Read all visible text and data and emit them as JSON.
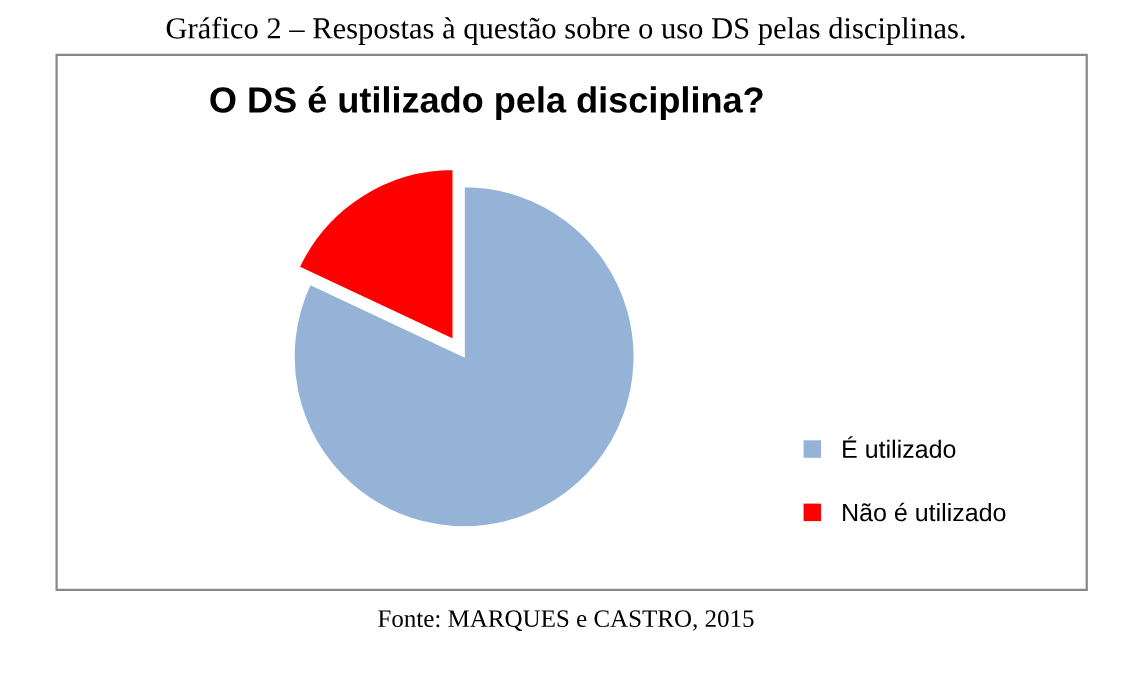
{
  "chart_data": {
    "type": "pie",
    "title": "O DS é utilizado pela disciplina?",
    "subtitle": "Gráfico 2 – Respostas à questão sobre o uso DS pelas disciplinas.",
    "annotations": [
      "Fonte: MARQUES e CASTRO, 2015"
    ],
    "categories": [
      "É utilizado",
      "Não é utilizado"
    ],
    "values": [
      82,
      18
    ],
    "colors": [
      "#95b3d7",
      "#ff0000"
    ],
    "legend": "right"
  }
}
